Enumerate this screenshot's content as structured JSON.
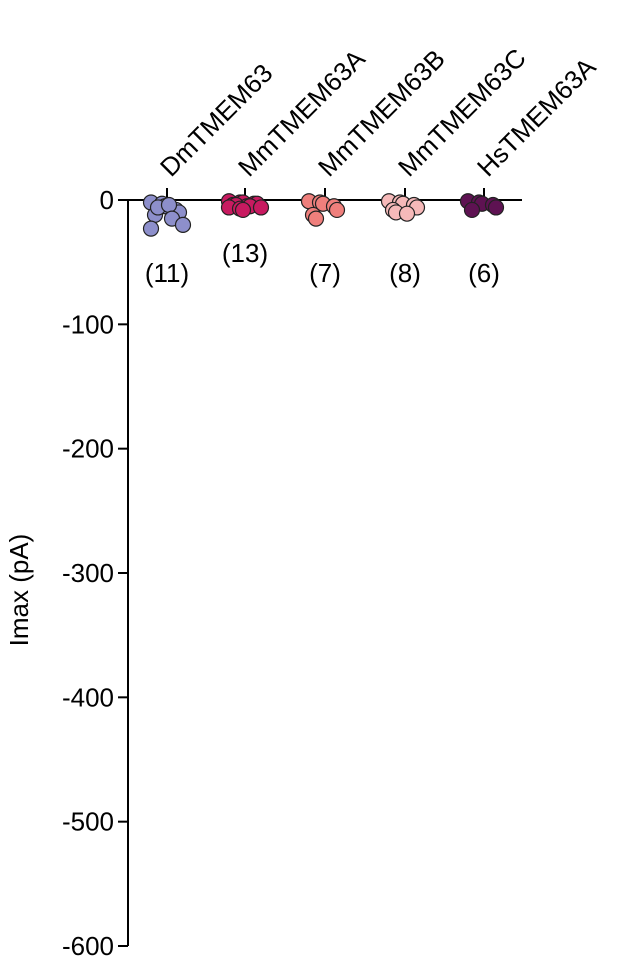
{
  "chart_data": {
    "type": "strip",
    "y_label": "Imax (pA)",
    "categories": [
      "DmTMEM63",
      "MmTMEM63A",
      "MmTMEM63B",
      "MmTMEM63C",
      "HsTMEM63A"
    ],
    "colors": [
      "#8d8fcb",
      "#c81a60",
      "#ef7f7c",
      "#f6b9b9",
      "#5e1252"
    ],
    "values": [
      [
        -2,
        -3,
        -5,
        -8,
        -10,
        -12,
        -6,
        -4,
        -15,
        -20,
        -23
      ],
      [
        -1,
        -2,
        -2,
        -3,
        -3,
        -4,
        -4,
        -5,
        -5,
        -6,
        -6,
        -7,
        -8
      ],
      [
        -1,
        -2,
        -3,
        -5,
        -8,
        -12,
        -15
      ],
      [
        -1,
        -2,
        -3,
        -4,
        -6,
        -8,
        -10,
        -11
      ],
      [
        -1,
        -2,
        -3,
        -4,
        -6,
        -8
      ]
    ],
    "annotations": [
      "(11)",
      "(13)",
      "(7)",
      "(8)",
      "(6)"
    ],
    "ylim": [
      -600,
      0
    ],
    "yticks": [
      0,
      -100,
      -200,
      -300,
      -400,
      -500,
      -600
    ]
  }
}
